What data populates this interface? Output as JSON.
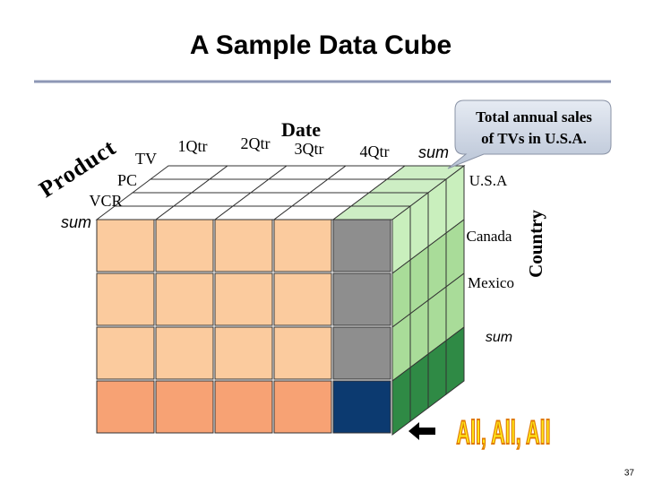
{
  "header": {
    "title": "A Sample Data Cube"
  },
  "cube": {
    "date_axis": {
      "label": "Date",
      "members": [
        "1Qtr",
        "2Qtr",
        "3Qtr",
        "4Qtr",
        "sum"
      ]
    },
    "product_axis": {
      "label": "Product",
      "members": [
        "TV",
        "PC",
        "VCR",
        "sum"
      ]
    },
    "country_axis": {
      "label": "Country",
      "members": [
        "U.S.A",
        "Canada",
        "Mexico",
        "sum"
      ]
    }
  },
  "callout": {
    "lines": [
      "Total annual sales",
      "of TVs in U.S.A."
    ]
  },
  "all_label": "All, All, All",
  "footer": {
    "page_number": "37"
  }
}
